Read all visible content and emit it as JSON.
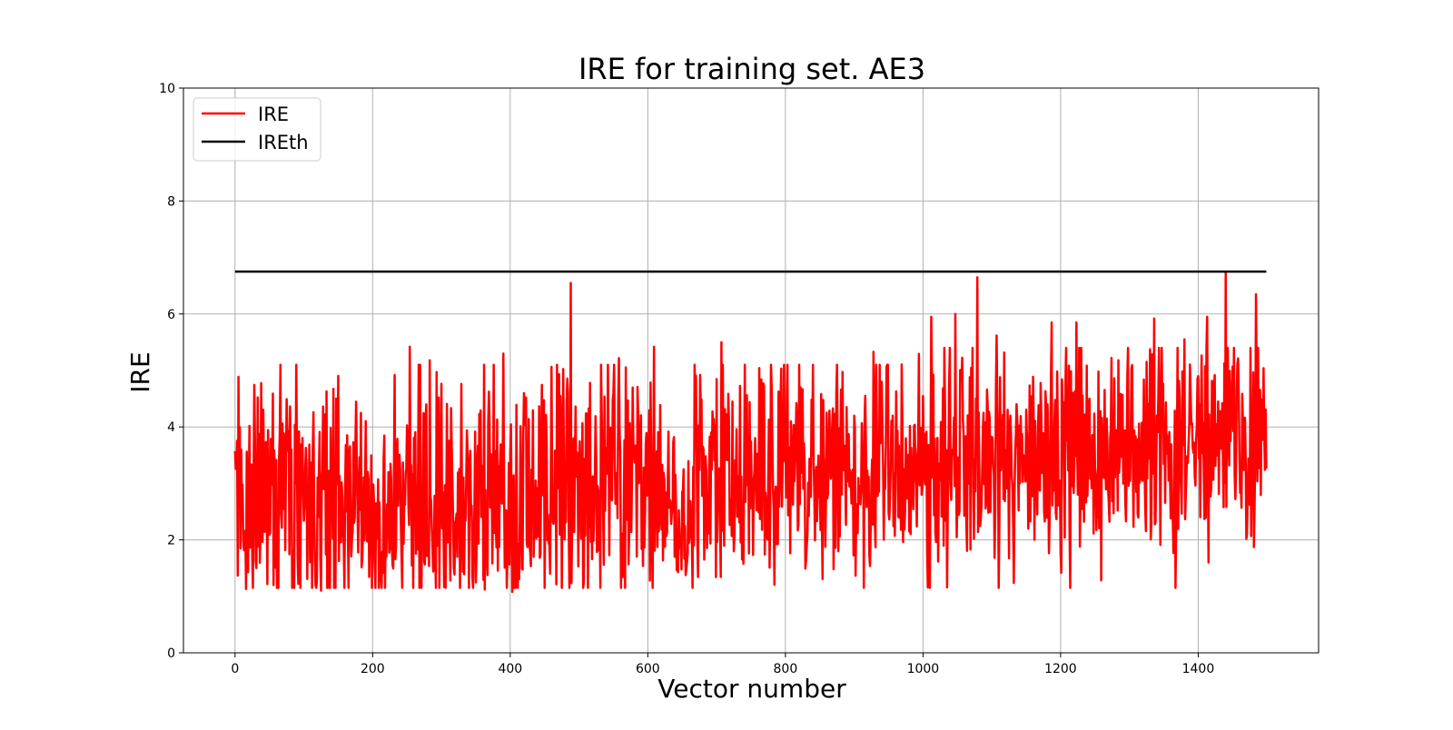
{
  "chart_data": {
    "type": "line",
    "title": "IRE for training set. AE3",
    "xlabel": "Vector number",
    "ylabel": "IRE",
    "xlim": [
      -75,
      1575
    ],
    "ylim": [
      0,
      10
    ],
    "x_ticks": [
      0,
      200,
      400,
      600,
      800,
      1000,
      1200,
      1400
    ],
    "y_ticks": [
      0,
      2,
      4,
      6,
      8,
      10
    ],
    "x_tick_labels": [
      "0",
      "200",
      "400",
      "600",
      "800",
      "1000",
      "1200",
      "1400"
    ],
    "y_tick_labels": [
      "0",
      "2",
      "4",
      "6",
      "8",
      "10"
    ],
    "grid": true,
    "legend_position": "top-left",
    "series": [
      {
        "name": "IRE",
        "color": "#ff0000",
        "n_points": 1500,
        "x_range": [
          0,
          1499
        ],
        "trend_mean": [
          [
            0,
            2.6
          ],
          [
            500,
            2.8
          ],
          [
            1000,
            3.4
          ],
          [
            1499,
            3.7
          ]
        ],
        "trend_spread": [
          [
            0,
            0.95
          ],
          [
            500,
            0.9
          ],
          [
            1000,
            0.85
          ],
          [
            1499,
            0.85
          ]
        ],
        "notable_peaks": [
          {
            "x": 488,
            "y": 6.55
          },
          {
            "x": 1079,
            "y": 6.65
          },
          {
            "x": 1440,
            "y": 6.75
          },
          {
            "x": 1484,
            "y": 6.35
          },
          {
            "x": 1047,
            "y": 6.0
          },
          {
            "x": 1012,
            "y": 5.95
          },
          {
            "x": 1336,
            "y": 5.92
          },
          {
            "x": 1413,
            "y": 5.95
          },
          {
            "x": 1187,
            "y": 5.85
          },
          {
            "x": 1223,
            "y": 5.85
          },
          {
            "x": 1107,
            "y": 5.62
          },
          {
            "x": 1380,
            "y": 5.55
          },
          {
            "x": 707,
            "y": 5.5
          },
          {
            "x": 609,
            "y": 5.42
          },
          {
            "x": 254,
            "y": 5.42
          },
          {
            "x": 390,
            "y": 5.3
          },
          {
            "x": 928,
            "y": 5.33
          },
          {
            "x": 558,
            "y": 5.22
          },
          {
            "x": 283,
            "y": 5.18
          }
        ],
        "notable_troughs": [
          {
            "x": 16,
            "y": 1.13
          },
          {
            "x": 125,
            "y": 1.1
          },
          {
            "x": 403,
            "y": 1.08
          },
          {
            "x": 363,
            "y": 1.12
          },
          {
            "x": 268,
            "y": 1.15
          },
          {
            "x": 475,
            "y": 1.15
          },
          {
            "x": 870,
            "y": 1.48
          }
        ]
      },
      {
        "name": "IREth",
        "color": "#000000",
        "x": [
          0,
          1499
        ],
        "y": [
          6.75,
          6.75
        ]
      }
    ]
  }
}
